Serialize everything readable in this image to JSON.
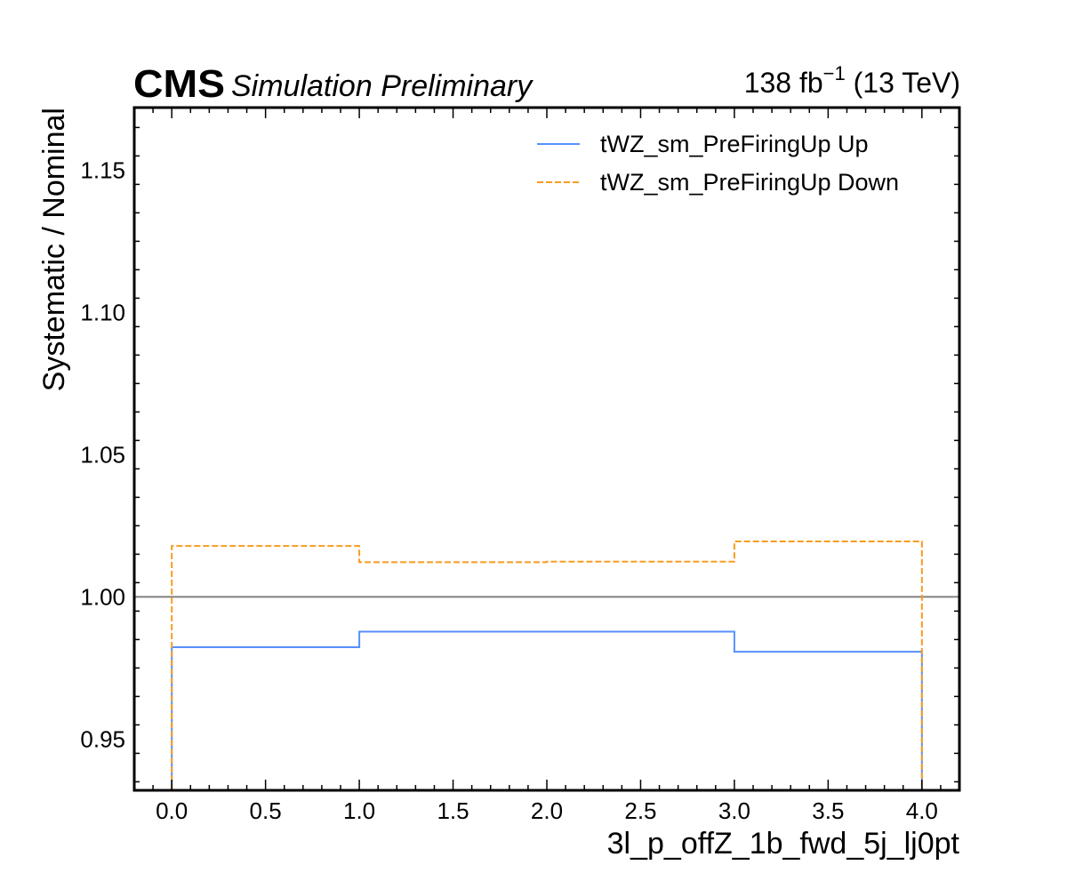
{
  "header": {
    "experiment": "CMS",
    "status": "Simulation Preliminary",
    "lumi_value": "138 fb",
    "lumi_exponent": "−1",
    "energy": " (13 TeV)"
  },
  "chart_data": {
    "type": "line",
    "drawstyle": "steps",
    "xlabel": "3l_p_offZ_1b_fwd_5j_lj0pt",
    "ylabel": "Systematic / Nominal",
    "xlim": [
      -0.2,
      4.2
    ],
    "ylim": [
      0.932,
      1.172
    ],
    "x_ticks": [
      0.0,
      0.5,
      1.0,
      1.5,
      2.0,
      2.5,
      3.0,
      3.5,
      4.0
    ],
    "x_tick_labels": [
      "0.0",
      "0.5",
      "1.0",
      "1.5",
      "2.0",
      "2.5",
      "3.0",
      "3.5",
      "4.0"
    ],
    "y_ticks": [
      0.95,
      1.0,
      1.05,
      1.1,
      1.15
    ],
    "y_tick_labels": [
      "0.95",
      "1.00",
      "1.05",
      "1.10",
      "1.15"
    ],
    "reference_line": {
      "y": 1.0,
      "color": "#808080"
    },
    "bin_edges": [
      0,
      1,
      2,
      3,
      4
    ],
    "legend_position": "top-right",
    "series": [
      {
        "name": "tWZ_sm_PreFiringUp Up",
        "values": [
          0.9823,
          0.9878,
          0.9878,
          0.9807
        ],
        "color": "#5790fc",
        "linestyle": "solid"
      },
      {
        "name": "tWZ_sm_PreFiringUp Down",
        "values": [
          1.0179,
          1.0122,
          1.0124,
          1.0195
        ],
        "color": "#f89c20",
        "linestyle": "dashed"
      }
    ]
  }
}
